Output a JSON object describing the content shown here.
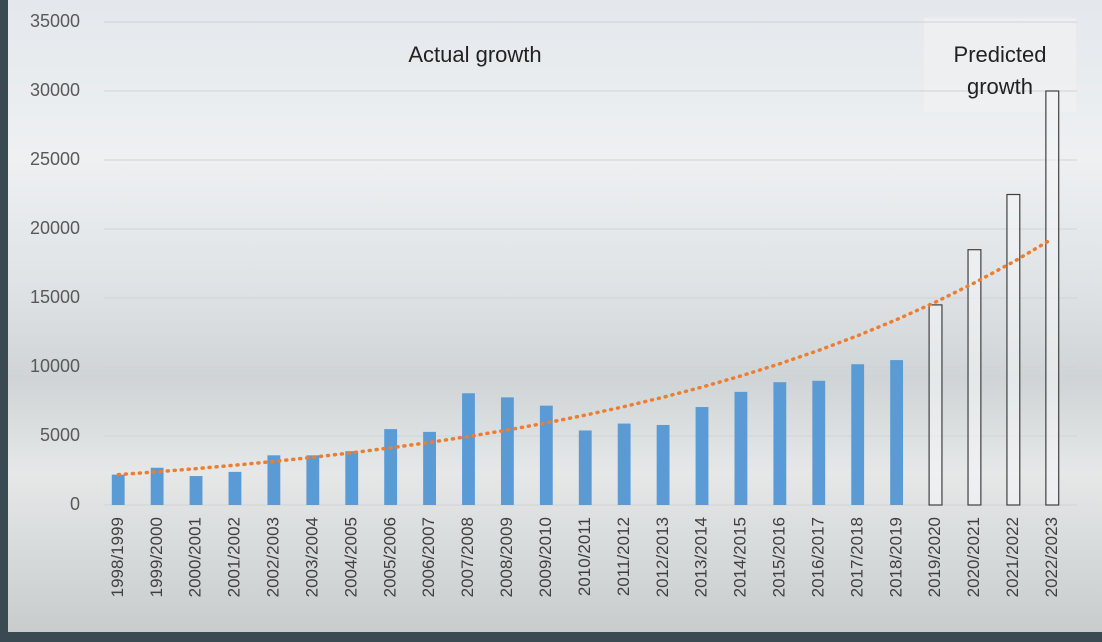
{
  "chart_data": {
    "type": "bar",
    "categories": [
      "1998/1999",
      "1999/2000",
      "2000/2001",
      "2001/2002",
      "2002/2003",
      "2003/2004",
      "2004/2005",
      "2005/2006",
      "2006/2007",
      "2007/2008",
      "2008/2009",
      "2009/2010",
      "2010/2011",
      "2011/2012",
      "2012/2013",
      "2013/2014",
      "2014/2015",
      "2015/2016",
      "2016/2017",
      "2017/2018",
      "2018/2019",
      "2019/2020",
      "2020/2021",
      "2021/2022",
      "2022/2023"
    ],
    "series": [
      {
        "color": "#5b9bd5",
        "values": [
          2200,
          2700,
          2100,
          2400,
          3600,
          3600,
          3900,
          5500,
          5300,
          8100,
          7800,
          7200,
          5400,
          5900,
          5800,
          7100,
          8200,
          8900,
          9000,
          10200,
          10500,
          null,
          null,
          null,
          null
        ]
      },
      {
        "color": "#404040",
        "hollow": true,
        "values": [
          null,
          null,
          null,
          null,
          null,
          null,
          null,
          null,
          null,
          null,
          null,
          null,
          null,
          null,
          null,
          null,
          null,
          null,
          null,
          null,
          null,
          14500,
          18500,
          22500,
          30000
        ]
      }
    ],
    "trendline": {
      "color": "#ed7d31",
      "values": [
        2200,
        2408,
        2636,
        2886,
        3160,
        3459,
        3786,
        4145,
        4537,
        4967,
        5437,
        5952,
        6516,
        7133,
        7808,
        8548,
        9357,
        10243,
        11213,
        12275,
        13438,
        14710,
        16103,
        17628,
        19297
      ]
    },
    "annotations": [
      "Actual growth",
      "Predicted growth"
    ],
    "ylim": [
      0,
      35000
    ],
    "yticks": [
      0,
      5000,
      10000,
      15000,
      20000,
      25000,
      30000,
      35000
    ],
    "grid": true
  }
}
